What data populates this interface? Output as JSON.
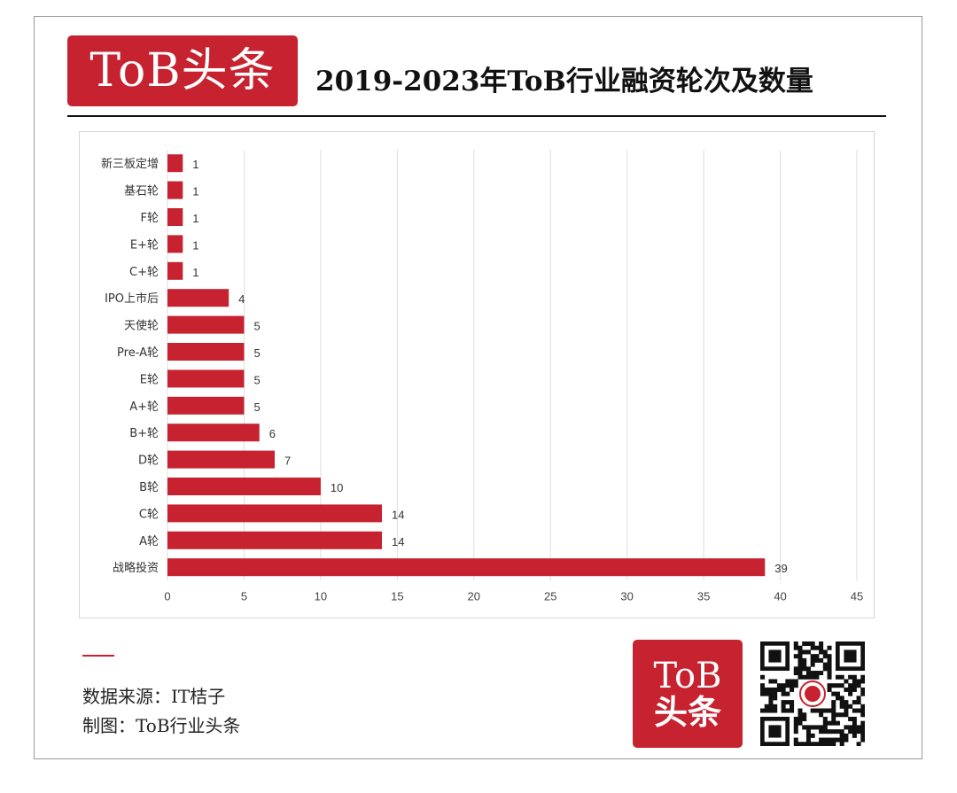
{
  "brand": {
    "logo_text": "ToB头条",
    "logo_line1": "ToB",
    "logo_line2": "头条",
    "color": "#c6222f"
  },
  "header": {
    "title": "2019-2023年ToB行业融资轮次及数量"
  },
  "chart_data": {
    "type": "bar",
    "orientation": "horizontal",
    "title": "2019-2023年ToB行业融资轮次及数量",
    "xlabel": "",
    "ylabel": "",
    "categories": [
      "新三板定增",
      "基石轮",
      "F轮",
      "E+轮",
      "C+轮",
      "IPO上市后",
      "天使轮",
      "Pre-A轮",
      "E轮",
      "A+轮",
      "B+轮",
      "D轮",
      "B轮",
      "C轮",
      "A轮",
      "战略投资"
    ],
    "values": [
      1,
      1,
      1,
      1,
      1,
      4,
      5,
      5,
      5,
      5,
      6,
      7,
      10,
      14,
      14,
      39
    ],
    "xlim": [
      0,
      45
    ],
    "xticks": [
      0,
      5,
      10,
      15,
      20,
      25,
      30,
      35,
      40,
      45
    ],
    "grid": "vertical",
    "data_labels": true,
    "bar_color": "#c6222f"
  },
  "footer": {
    "source": "数据来源：IT桔子",
    "credit": "制图：ToB行业头条"
  },
  "icons": {
    "qr": "qr-code-icon",
    "qr_center": "tob-logo-badge-icon"
  }
}
